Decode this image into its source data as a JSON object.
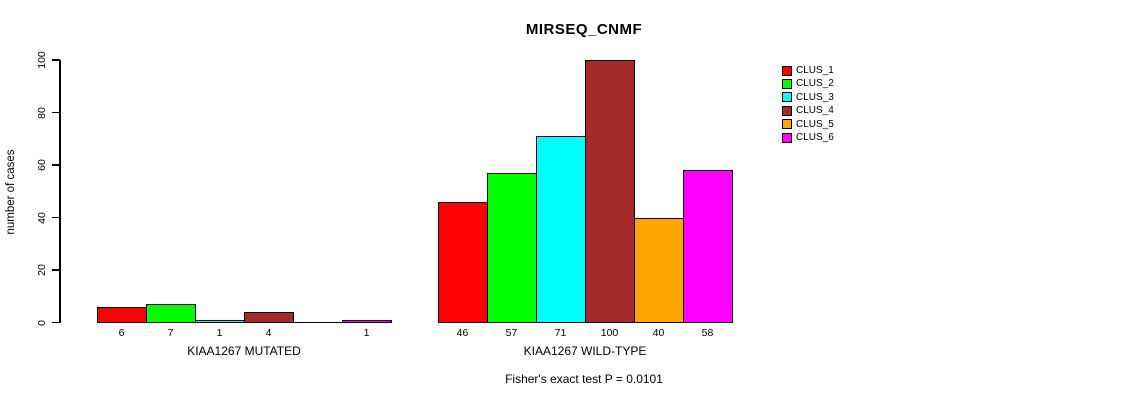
{
  "title": "MIRSEQ_CNMF",
  "chart_data": {
    "type": "bar",
    "title": "MIRSEQ_CNMF",
    "xlabel": "",
    "ylabel": "number of cases",
    "ylim": [
      0,
      100
    ],
    "yticks": [
      0,
      20,
      40,
      60,
      80,
      100
    ],
    "grid": false,
    "legend_position": "top-right",
    "legend": [
      {
        "label": "CLUS_1",
        "color": "#FF0000"
      },
      {
        "label": "CLUS_2",
        "color": "#00FF00"
      },
      {
        "label": "CLUS_3",
        "color": "#00FFFF"
      },
      {
        "label": "CLUS_4",
        "color": "#A52A2A"
      },
      {
        "label": "CLUS_5",
        "color": "#FFA500"
      },
      {
        "label": "CLUS_6",
        "color": "#FF00FF"
      }
    ],
    "groups": [
      {
        "label": "KIAA1267 MUTATED",
        "values": [
          6,
          7,
          1,
          4,
          0,
          1
        ],
        "bar_labels": [
          "6",
          "7",
          "1",
          "4",
          "",
          "1"
        ]
      },
      {
        "label": "KIAA1267 WILD-TYPE",
        "values": [
          46,
          57,
          71,
          100,
          40,
          58
        ],
        "bar_labels": [
          "46",
          "57",
          "71",
          "100",
          "40",
          "58"
        ]
      }
    ],
    "annotation": "Fisher's exact test P = 0.0101"
  }
}
